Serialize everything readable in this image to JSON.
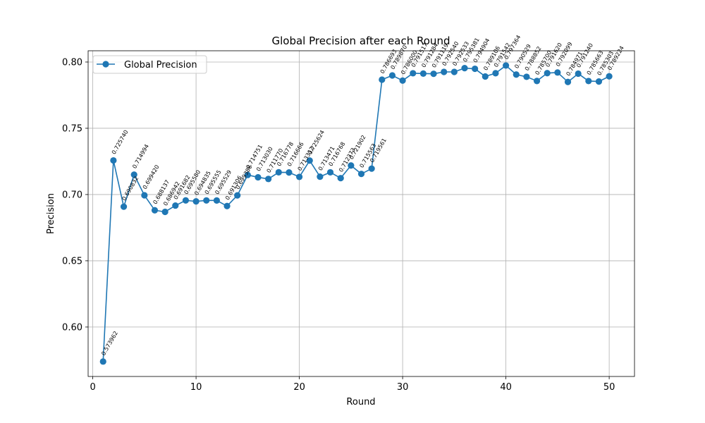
{
  "chart_data": {
    "type": "line",
    "title": "Global Precision after each Round",
    "xlabel": "Round",
    "ylabel": "Precision",
    "xlim": [
      -0.45,
      52.45
    ],
    "ylim": [
      0.5627,
      0.8085
    ],
    "x_ticks": [
      0,
      10,
      20,
      30,
      40,
      50
    ],
    "y_ticks": [
      0.6,
      0.65,
      0.7,
      0.75,
      0.8
    ],
    "y_tick_labels": [
      "0.60",
      "0.65",
      "0.70",
      "0.75",
      "0.80"
    ],
    "grid": true,
    "legend_position": "top-left",
    "series": [
      {
        "name": "Global Precision",
        "color": "#1f77b4",
        "marker": "circle",
        "x": [
          1,
          2,
          3,
          4,
          5,
          6,
          7,
          8,
          9,
          10,
          11,
          12,
          13,
          14,
          15,
          16,
          17,
          18,
          19,
          20,
          21,
          22,
          23,
          24,
          25,
          26,
          27,
          28,
          29,
          30,
          31,
          32,
          33,
          34,
          35,
          36,
          37,
          38,
          39,
          40,
          41,
          42,
          43,
          44,
          45,
          46,
          47,
          48,
          49,
          50
        ],
        "values": [
          0.573962,
          0.72574,
          0.690832,
          0.714994,
          0.69942,
          0.688137,
          0.686942,
          0.691682,
          0.69558,
          0.694835,
          0.695555,
          0.695529,
          0.691306,
          0.699386,
          0.714751,
          0.71303,
          0.71177,
          0.716778,
          0.716666,
          0.713312,
          0.725624,
          0.713471,
          0.716768,
          0.712373,
          0.721902,
          0.715563,
          0.719561,
          0.786693,
          0.78987,
          0.786,
          0.791517,
          0.791284,
          0.791119,
          0.79254,
          0.792533,
          0.795381,
          0.794904,
          0.789106,
          0.791542,
          0.797364,
          0.790529,
          0.788852,
          0.7857,
          0.79162,
          0.792099,
          0.784971,
          0.79124,
          0.785663,
          0.785303,
          0.789224
        ],
        "labels": [
          "0.573962",
          "0.725740",
          "0.690832",
          "0.714994",
          "0.699420",
          "0.688137",
          "0.686942",
          "0.691682",
          "0.695580",
          "0.694835",
          "0.695555",
          "0.695529",
          "0.691306",
          "0.699386",
          "0.714751",
          "0.713030",
          "0.711770",
          "0.716778",
          "0.716666",
          "0.713312",
          "0.725624",
          "0.713471",
          "0.716768",
          "0.712373",
          "0.721902",
          "0.715563",
          "0.719561",
          "0.786693",
          "0.789870",
          "0.786000",
          "0.791517",
          "0.791284",
          "0.791119",
          "0.792540",
          "0.792533",
          "0.795381",
          "0.794904",
          "0.789106",
          "0.791542",
          "0.797364",
          "0.790529",
          "0.788852",
          "0.785700",
          "0.791620",
          "0.792099",
          "0.784971",
          "0.791240",
          "0.785663",
          "0.785303",
          "0.789224"
        ]
      }
    ]
  }
}
